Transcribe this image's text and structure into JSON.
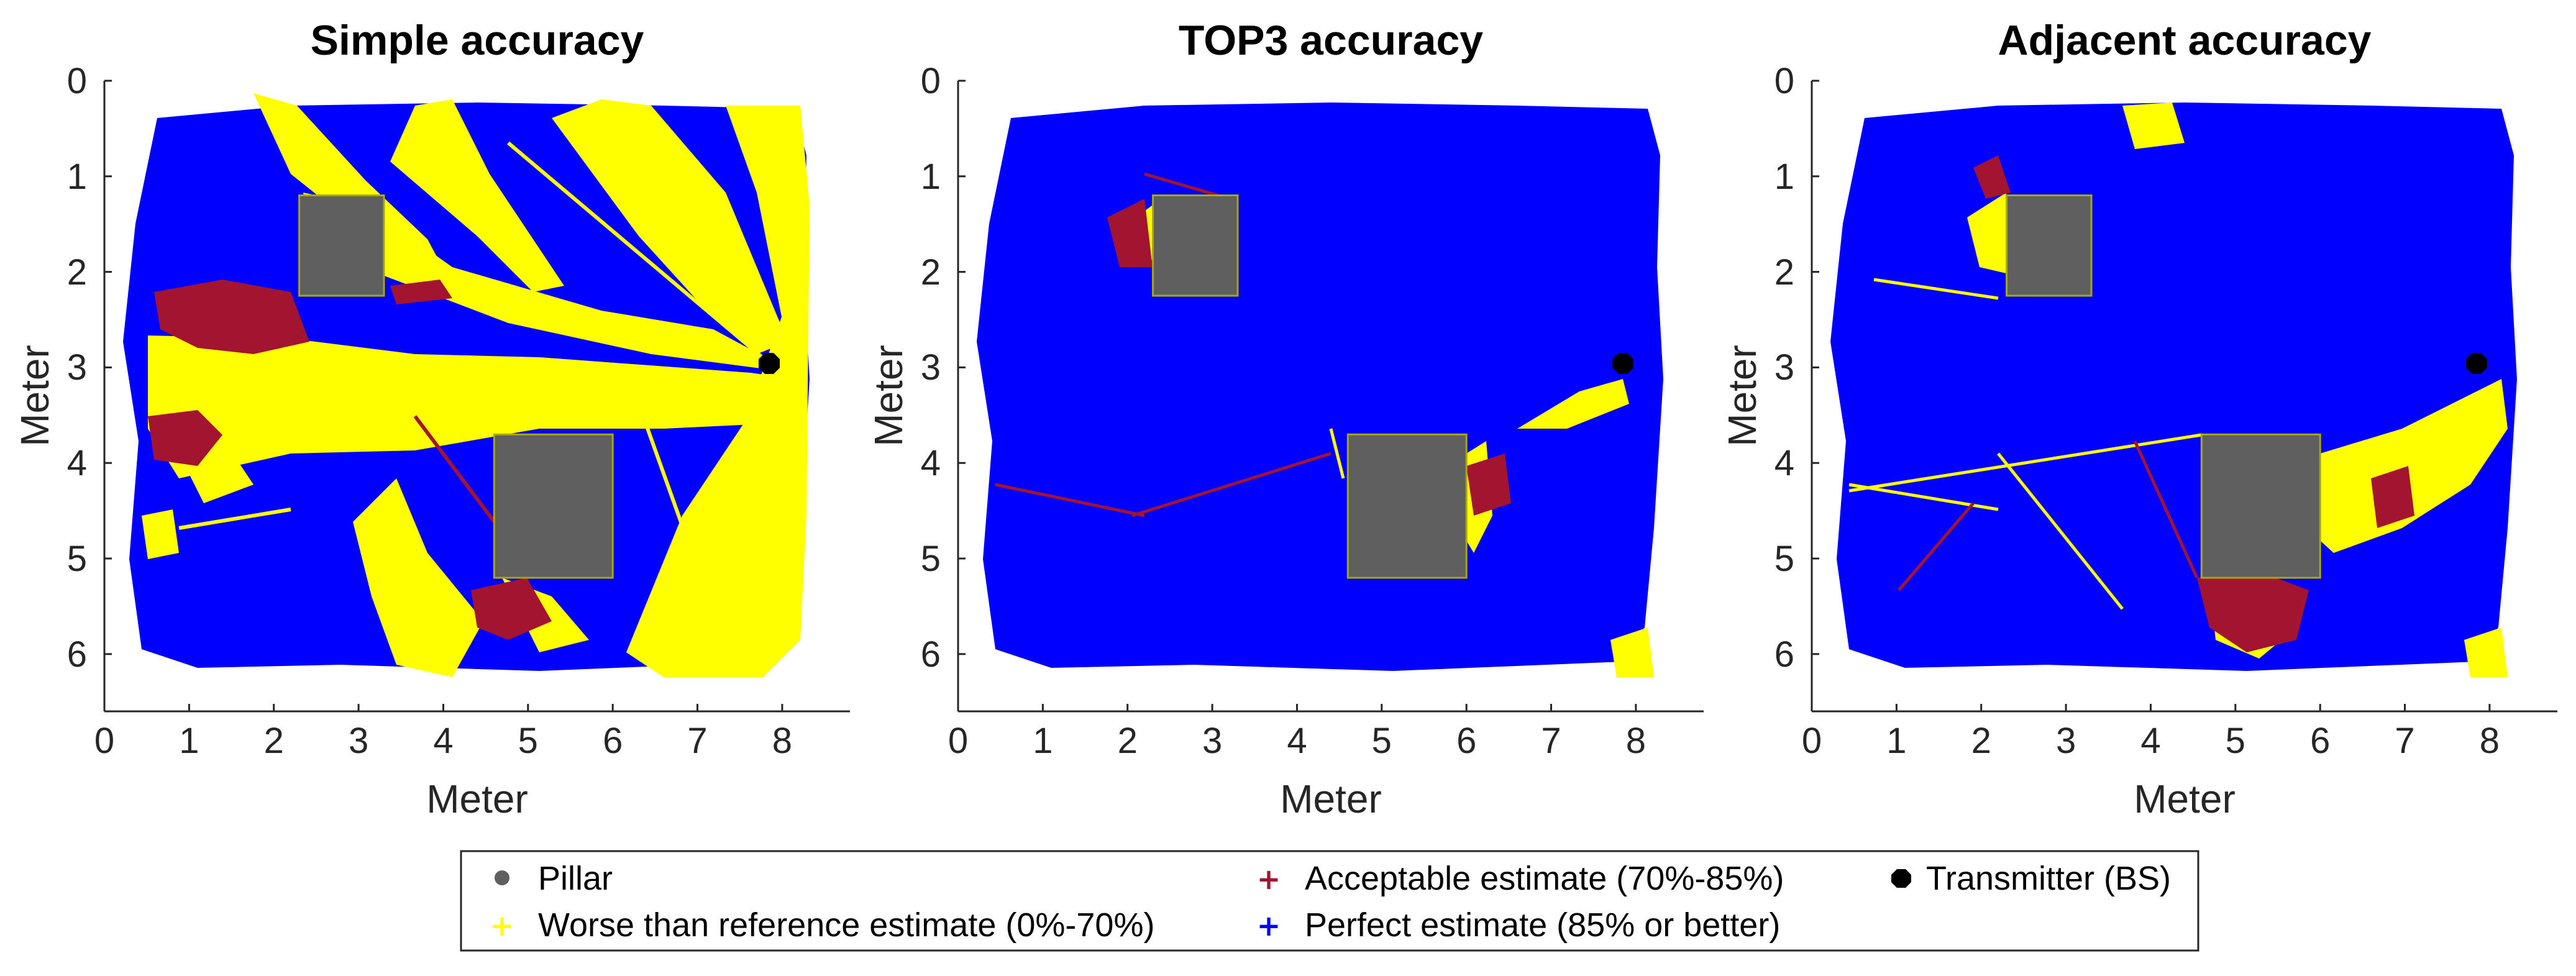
{
  "chart_data": [
    {
      "type": "scatter",
      "title": "Simple accuracy",
      "xlabel": "Meter",
      "ylabel": "Meter",
      "xlim": [
        0,
        8.8
      ],
      "ylim": [
        0,
        6.6
      ],
      "y_reversed": true,
      "xticks": [
        "0",
        "1",
        "2",
        "3",
        "4",
        "5",
        "6",
        "7",
        "8"
      ],
      "yticks": [
        "0",
        "1",
        "2",
        "3",
        "4",
        "5",
        "6"
      ],
      "pillars": [
        {
          "x": [
            2.3,
            3.3
          ],
          "y": [
            1.2,
            2.25
          ]
        },
        {
          "x": [
            4.6,
            6.0
          ],
          "y": [
            3.7,
            5.2
          ]
        }
      ],
      "transmitter": {
        "x": 7.85,
        "y": 2.9
      },
      "region_shares": {
        "perfect": 0.55,
        "acceptable": 0.08,
        "worse": 0.37
      }
    },
    {
      "type": "scatter",
      "title": "TOP3 accuracy",
      "xlabel": "Meter",
      "ylabel": "Meter",
      "xlim": [
        0,
        8.8
      ],
      "ylim": [
        0,
        6.6
      ],
      "y_reversed": true,
      "xticks": [
        "0",
        "1",
        "2",
        "3",
        "4",
        "5",
        "6",
        "7",
        "8"
      ],
      "yticks": [
        "0",
        "1",
        "2",
        "3",
        "4",
        "5",
        "6"
      ],
      "pillars": [
        {
          "x": [
            2.3,
            3.3
          ],
          "y": [
            1.2,
            2.25
          ]
        },
        {
          "x": [
            4.6,
            6.0
          ],
          "y": [
            3.7,
            5.2
          ]
        }
      ],
      "transmitter": {
        "x": 7.85,
        "y": 2.9
      },
      "region_shares": {
        "perfect": 0.95,
        "acceptable": 0.02,
        "worse": 0.03
      }
    },
    {
      "type": "scatter",
      "title": "Adjacent accuracy",
      "xlabel": "Meter",
      "ylabel": "Meter",
      "xlim": [
        0,
        8.8
      ],
      "ylim": [
        0,
        6.6
      ],
      "y_reversed": true,
      "xticks": [
        "0",
        "1",
        "2",
        "3",
        "4",
        "5",
        "6",
        "7",
        "8"
      ],
      "yticks": [
        "0",
        "1",
        "2",
        "3",
        "4",
        "5",
        "6"
      ],
      "pillars": [
        {
          "x": [
            2.3,
            3.3
          ],
          "y": [
            1.2,
            2.25
          ]
        },
        {
          "x": [
            4.6,
            6.0
          ],
          "y": [
            3.7,
            5.2
          ]
        }
      ],
      "transmitter": {
        "x": 7.85,
        "y": 2.9
      },
      "region_shares": {
        "perfect": 0.86,
        "acceptable": 0.05,
        "worse": 0.09
      }
    }
  ],
  "legend": {
    "placement": "bottom-center",
    "entries": [
      {
        "label": "Pillar",
        "marker": "filled-circle",
        "color": "#5f5f5f"
      },
      {
        "label": "Worse than reference estimate (0%-70%)",
        "marker": "plus",
        "color": "#ffff00"
      },
      {
        "label": "Acceptable estimate (70%-85%)",
        "marker": "plus",
        "color": "#a2142f"
      },
      {
        "label": "Perfect estimate (85% or better)",
        "marker": "plus",
        "color": "#0000ff"
      },
      {
        "label": "Transmitter (BS)",
        "marker": "filled-octagon",
        "color": "#000000"
      }
    ]
  },
  "colors": {
    "perfect": "#0000ff",
    "acceptable": "#a2142f",
    "worse": "#ffff00",
    "pillar": "#5f5f5f",
    "transmitter": "#000000",
    "axis": "#262626"
  }
}
